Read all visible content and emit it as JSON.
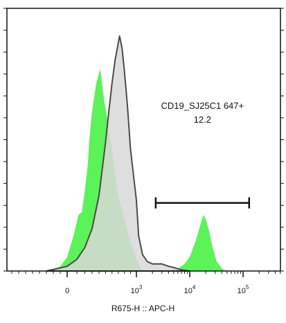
{
  "chart_data": {
    "type": "area",
    "xlabel": "R675-H :: APC-H",
    "x_scale": "biexponential",
    "x_ticks": [
      {
        "label": "0",
        "value": 0
      },
      {
        "label": "10",
        "exp": "3",
        "value": 1000
      },
      {
        "label": "10",
        "exp": "4",
        "value": 10000
      },
      {
        "label": "10",
        "exp": "5",
        "value": 100000
      }
    ],
    "y_tick_count": 12,
    "series": [
      {
        "style": "filled-green",
        "color": "#5cf25a",
        "points": [
          [
            -300,
            0
          ],
          [
            -200,
            0.005
          ],
          [
            -100,
            0.02
          ],
          [
            0,
            0.06
          ],
          [
            60,
            0.15
          ],
          [
            120,
            0.24
          ],
          [
            160,
            0.25
          ],
          [
            200,
            0.34
          ],
          [
            240,
            0.45
          ],
          [
            260,
            0.55
          ],
          [
            300,
            0.68
          ],
          [
            330,
            0.74
          ],
          [
            360,
            0.8
          ],
          [
            390,
            0.83
          ],
          [
            420,
            0.86
          ],
          [
            450,
            0.79
          ],
          [
            480,
            0.72
          ],
          [
            510,
            0.68
          ],
          [
            550,
            0.6
          ],
          [
            600,
            0.52
          ],
          [
            650,
            0.4
          ],
          [
            700,
            0.32
          ],
          [
            800,
            0.22
          ],
          [
            900,
            0.12
          ],
          [
            1000,
            0.05
          ],
          [
            1200,
            0.01
          ],
          [
            1500,
            0.003
          ],
          [
            2000,
            0.002
          ],
          [
            3000,
            0.004
          ],
          [
            4000,
            0.002
          ],
          [
            6000,
            0.01
          ],
          [
            8000,
            0.03
          ],
          [
            10000,
            0.06
          ],
          [
            13000,
            0.13
          ],
          [
            16000,
            0.2
          ],
          [
            18000,
            0.24
          ],
          [
            20000,
            0.22
          ],
          [
            23000,
            0.17
          ],
          [
            27000,
            0.1
          ],
          [
            32000,
            0.04
          ],
          [
            40000,
            0.01
          ],
          [
            50000,
            0
          ]
        ]
      },
      {
        "style": "filled-gray",
        "color": "#d8d8d8",
        "stroke": "#4a4a4a",
        "points": [
          [
            -300,
            0
          ],
          [
            -150,
            0.01
          ],
          [
            0,
            0.02
          ],
          [
            100,
            0.05
          ],
          [
            200,
            0.1
          ],
          [
            300,
            0.18
          ],
          [
            400,
            0.32
          ],
          [
            500,
            0.55
          ],
          [
            550,
            0.68
          ],
          [
            600,
            0.8
          ],
          [
            650,
            0.9
          ],
          [
            700,
            0.97
          ],
          [
            720,
            1.0
          ],
          [
            760,
            0.95
          ],
          [
            800,
            0.85
          ],
          [
            850,
            0.7
          ],
          [
            900,
            0.52
          ],
          [
            1000,
            0.3
          ],
          [
            1100,
            0.15
          ],
          [
            1300,
            0.07
          ],
          [
            1600,
            0.04
          ],
          [
            2000,
            0.03
          ],
          [
            3000,
            0.03
          ],
          [
            4000,
            0.02
          ],
          [
            5000,
            0.015
          ],
          [
            7000,
            0.005
          ],
          [
            10000,
            0
          ]
        ]
      }
    ],
    "gate": {
      "x_start": 2300,
      "x_end": 130000,
      "y": 0.29
    },
    "annotations": [
      {
        "text": "CD19_SJ25C1 647+"
      },
      {
        "text": "12.2"
      }
    ]
  }
}
